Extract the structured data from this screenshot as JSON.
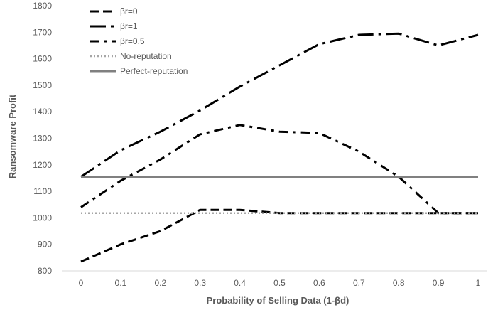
{
  "chart_data": {
    "type": "line",
    "title": "",
    "xlabel": "Probability of Selling Data (1-βd)",
    "ylabel": "Ransomware Profit",
    "categories": [
      "0",
      "0.1",
      "0.2",
      "0.3",
      "0.4",
      "0.5",
      "0.6",
      "0.7",
      "0.8",
      "0.9",
      "1"
    ],
    "x": [
      0,
      0.1,
      0.2,
      0.3,
      0.4,
      0.5,
      0.6,
      0.7,
      0.8,
      0.9,
      1
    ],
    "ylim": [
      800,
      1800
    ],
    "yticks": [
      "800",
      "900",
      "1000",
      "1100",
      "1200",
      "1300",
      "1400",
      "1500",
      "1600",
      "1700",
      "1800"
    ],
    "grid": false,
    "legend_position": "top-left",
    "series": [
      {
        "name": "βr=0",
        "values": [
          835,
          900,
          950,
          1030,
          1030,
          1018,
          1018,
          1018,
          1018,
          1018,
          1018
        ],
        "color": "#000000",
        "dash": "dash"
      },
      {
        "name": "βr=1",
        "values": [
          1155,
          1255,
          1325,
          1405,
          1495,
          1575,
          1655,
          1690,
          1695,
          1650,
          1690
        ],
        "color": "#000000",
        "dash": "longdashdot"
      },
      {
        "name": "βr=0.5",
        "values": [
          1040,
          1140,
          1220,
          1315,
          1350,
          1325,
          1320,
          1250,
          1155,
          1018,
          1018
        ],
        "color": "#000000",
        "dash": "dashdot"
      },
      {
        "name": "No-reputation",
        "values": [
          1018,
          1018,
          1018,
          1018,
          1018,
          1018,
          1018,
          1018,
          1018,
          1018,
          1018
        ],
        "color": "#a6a6a6",
        "dash": "dot"
      },
      {
        "name": "Perfect-reputation",
        "values": [
          1155,
          1155,
          1155,
          1155,
          1155,
          1155,
          1155,
          1155,
          1155,
          1155,
          1155
        ],
        "color": "#808080",
        "dash": "solid"
      }
    ]
  }
}
